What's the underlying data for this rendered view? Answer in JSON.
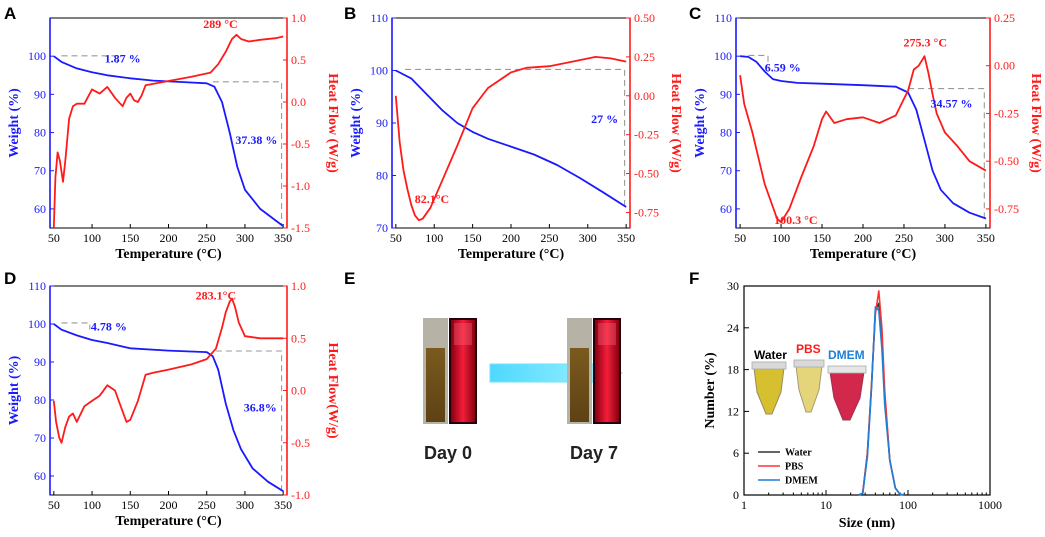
{
  "panels": {
    "A": "A",
    "B": "B",
    "C": "C",
    "D": "D",
    "E": "E",
    "F": "F"
  },
  "colors": {
    "weight": "#1a1aff",
    "heat": "#ff1a1a",
    "dash": "#9a9a9a",
    "water": "#333333",
    "pbs": "#ff3333",
    "dmem": "#1e7fd6",
    "arrow": "#7fe9ff"
  },
  "panel_E": {
    "day0": "Day 0",
    "day7": "Day 7"
  },
  "panel_F_tubes": {
    "water": "Water",
    "pbs": "PBS",
    "dmem": "DMEM"
  },
  "chart_data": [
    {
      "id": "A",
      "type": "line",
      "xlabel": "Temperature (°C)",
      "ylabel": "Weight (%)",
      "y2label": "Heat Flow (W/g)",
      "xlim": [
        45,
        355
      ],
      "xticks": [
        50,
        100,
        150,
        200,
        250,
        300,
        350
      ],
      "ylim": [
        55,
        110
      ],
      "yticks": [
        60,
        70,
        80,
        90,
        100
      ],
      "y2lim": [
        -1.5,
        1.0
      ],
      "y2ticks": [
        "-1.5",
        "-1.0",
        "-0.5",
        "0.0",
        "0.5",
        "1.0"
      ],
      "annotations": [
        {
          "text": "1.87 %",
          "x": 140,
          "y": 98.3,
          "axis": "left",
          "color": "blue"
        },
        {
          "text": "37.38 %",
          "x": 315,
          "y": 77,
          "axis": "left",
          "color": "blue"
        },
        {
          "text": "289 °C",
          "x": 268,
          "y2": 0.88,
          "axis": "right",
          "color": "red"
        }
      ],
      "dashes": [
        [
          [
            60,
            100.1
          ],
          [
            133,
            100.1
          ],
          [
            133,
            98.2
          ]
        ],
        [
          [
            258,
            93.3
          ],
          [
            348,
            93.3
          ],
          [
            348,
            56
          ]
        ]
      ],
      "series": [
        {
          "name": "Weight",
          "axis": "left",
          "color": "blue",
          "x": [
            50,
            60,
            80,
            100,
            120,
            150,
            180,
            220,
            250,
            260,
            270,
            280,
            290,
            300,
            320,
            340,
            350
          ],
          "y": [
            100,
            98.5,
            96.8,
            95.8,
            95,
            94.2,
            93.6,
            93.2,
            92.9,
            92,
            88,
            80,
            71,
            65,
            60,
            57,
            55.5
          ]
        },
        {
          "name": "Heat Flow",
          "axis": "right",
          "color": "red",
          "x": [
            50,
            52,
            55,
            58,
            62,
            65,
            70,
            75,
            80,
            90,
            100,
            110,
            120,
            130,
            140,
            145,
            150,
            155,
            160,
            165,
            170,
            200,
            230,
            255,
            265,
            275,
            283,
            289,
            295,
            305,
            320,
            340,
            350
          ],
          "y": [
            -1.5,
            -0.9,
            -0.6,
            -0.7,
            -0.95,
            -0.7,
            -0.2,
            -0.05,
            -0.02,
            -0.02,
            0.15,
            0.1,
            0.18,
            0.05,
            -0.05,
            0.05,
            0.1,
            0.02,
            0.0,
            0.08,
            0.2,
            0.25,
            0.3,
            0.35,
            0.45,
            0.6,
            0.75,
            0.8,
            0.75,
            0.72,
            0.74,
            0.76,
            0.78
          ]
        }
      ]
    },
    {
      "id": "B",
      "type": "line",
      "xlabel": "Temperature (°C)",
      "ylabel": "Weight (%)",
      "y2label": "Heat Flow (W/g)",
      "xlim": [
        45,
        355
      ],
      "xticks": [
        50,
        100,
        150,
        200,
        250,
        300,
        350
      ],
      "ylim": [
        70,
        110
      ],
      "yticks": [
        70,
        80,
        90,
        100,
        110
      ],
      "y2lim": [
        -0.85,
        0.5
      ],
      "y2ticks": [
        "-0.75",
        "-0.50",
        "-0.25",
        "0.00",
        "0.25",
        "0.50"
      ],
      "annotations": [
        {
          "text": "27 %",
          "x": 322,
          "y": 90,
          "axis": "left",
          "color": "blue"
        },
        {
          "text": "82.1°C",
          "x": 97,
          "y2": -0.69,
          "axis": "right",
          "color": "red"
        }
      ],
      "dashes": [
        [
          [
            62,
            100.2
          ],
          [
            348,
            100.2
          ],
          [
            348,
            73.5
          ]
        ]
      ],
      "series": [
        {
          "name": "Weight",
          "axis": "left",
          "color": "blue",
          "x": [
            50,
            70,
            90,
            110,
            130,
            150,
            170,
            200,
            230,
            260,
            290,
            320,
            350
          ],
          "y": [
            100,
            98.5,
            95.5,
            92.5,
            90,
            88.3,
            87,
            85.5,
            84,
            82,
            79.5,
            76.8,
            74
          ]
        },
        {
          "name": "Heat Flow",
          "axis": "right",
          "color": "red",
          "x": [
            50,
            55,
            60,
            65,
            70,
            75,
            80,
            85,
            95,
            110,
            130,
            150,
            170,
            200,
            220,
            250,
            280,
            310,
            330,
            350
          ],
          "y": [
            0.0,
            -0.3,
            -0.48,
            -0.6,
            -0.7,
            -0.77,
            -0.8,
            -0.79,
            -0.72,
            -0.55,
            -0.32,
            -0.08,
            0.05,
            0.15,
            0.18,
            0.19,
            0.22,
            0.25,
            0.24,
            0.22
          ]
        }
      ]
    },
    {
      "id": "C",
      "type": "line",
      "xlabel": "Temperature (°C)",
      "ylabel": "Weight (%)",
      "y2label": "Heat Flow (W/g)",
      "xlim": [
        45,
        355
      ],
      "xticks": [
        50,
        100,
        150,
        200,
        250,
        300,
        350
      ],
      "ylim": [
        55,
        110
      ],
      "yticks": [
        60,
        70,
        80,
        90,
        100,
        110
      ],
      "y2lim": [
        -0.85,
        0.25
      ],
      "y2ticks": [
        "-0.75",
        "-0.50",
        "-0.25",
        "0.00",
        "0.25"
      ],
      "annotations": [
        {
          "text": "6.59 %",
          "x": 102,
          "y": 96,
          "axis": "left",
          "color": "blue"
        },
        {
          "text": "34.57 %",
          "x": 308,
          "y": 86.5,
          "axis": "left",
          "color": "blue"
        },
        {
          "text": "275.3 °C",
          "x": 276,
          "y2": 0.1,
          "axis": "right",
          "color": "red"
        },
        {
          "text": "100.3 °C",
          "x": 118,
          "y2": -0.83,
          "axis": "right",
          "color": "red",
          "small": true
        }
      ],
      "dashes": [
        [
          [
            60,
            100.2
          ],
          [
            84,
            100.2
          ],
          [
            84,
            97
          ]
        ],
        [
          [
            255,
            91.5
          ],
          [
            348,
            91.5
          ],
          [
            348,
            57.5
          ]
        ]
      ],
      "series": [
        {
          "name": "Weight",
          "axis": "left",
          "color": "blue",
          "x": [
            50,
            60,
            70,
            80,
            90,
            100,
            120,
            150,
            200,
            240,
            255,
            265,
            275,
            285,
            295,
            310,
            330,
            350
          ],
          "y": [
            100,
            99.8,
            98.5,
            96,
            94,
            93.5,
            93,
            92.8,
            92.4,
            92,
            90.5,
            86,
            78,
            70,
            65,
            61.5,
            59,
            57.5
          ]
        },
        {
          "name": "Heat Flow",
          "axis": "right",
          "color": "red",
          "x": [
            50,
            55,
            65,
            80,
            95,
            100,
            110,
            125,
            140,
            150,
            155,
            165,
            180,
            200,
            220,
            240,
            255,
            262,
            268,
            275,
            280,
            285,
            290,
            300,
            315,
            330,
            350
          ],
          "y": [
            -0.05,
            -0.2,
            -0.35,
            -0.62,
            -0.8,
            -0.82,
            -0.75,
            -0.58,
            -0.42,
            -0.28,
            -0.24,
            -0.3,
            -0.28,
            -0.27,
            -0.3,
            -0.26,
            -0.13,
            -0.02,
            0.0,
            0.05,
            -0.04,
            -0.15,
            -0.25,
            -0.35,
            -0.42,
            -0.5,
            -0.55
          ]
        }
      ]
    },
    {
      "id": "D",
      "type": "line",
      "xlabel": "Temperature (°C)",
      "ylabel": "Weight (%)",
      "y2label": "Heat Flow(W/g)",
      "xlim": [
        45,
        355
      ],
      "xticks": [
        50,
        100,
        150,
        200,
        250,
        300,
        350
      ],
      "ylim": [
        55,
        110
      ],
      "yticks": [
        60,
        70,
        80,
        90,
        100,
        110
      ],
      "y2lim": [
        -1.0,
        1.0
      ],
      "y2ticks": [
        "-1.0",
        "-0.5",
        "0.0",
        "0.5",
        "1.0"
      ],
      "annotations": [
        {
          "text": "4.78 %",
          "x": 122,
          "y": 98.3,
          "axis": "left",
          "color": "blue"
        },
        {
          "text": "36.8%",
          "x": 320,
          "y": 77,
          "axis": "left",
          "color": "blue"
        },
        {
          "text": "283.1°C",
          "x": 262,
          "y2": 0.87,
          "axis": "right",
          "color": "red"
        }
      ],
      "dashes": [
        [
          [
            60,
            100.3
          ],
          [
            97,
            100.3
          ],
          [
            97,
            98.5
          ]
        ],
        [
          [
            262,
            92.9
          ],
          [
            348,
            92.9
          ],
          [
            348,
            56.5
          ]
        ]
      ],
      "series": [
        {
          "name": "Weight",
          "axis": "left",
          "color": "blue",
          "x": [
            50,
            60,
            80,
            100,
            120,
            150,
            200,
            250,
            258,
            265,
            275,
            285,
            295,
            310,
            330,
            350
          ],
          "y": [
            100,
            98.5,
            97,
            95.8,
            95,
            93.6,
            93,
            92.6,
            91.5,
            88,
            79,
            72,
            67,
            62,
            58.5,
            56
          ]
        },
        {
          "name": "Heat Flow",
          "axis": "right",
          "color": "red",
          "x": [
            50,
            53,
            57,
            60,
            65,
            70,
            75,
            80,
            90,
            100,
            110,
            120,
            130,
            140,
            145,
            150,
            160,
            170,
            180,
            200,
            230,
            250,
            262,
            270,
            275,
            280,
            283,
            287,
            292,
            300,
            320,
            340,
            350
          ],
          "y": [
            -0.1,
            -0.3,
            -0.45,
            -0.5,
            -0.35,
            -0.25,
            -0.22,
            -0.3,
            -0.15,
            -0.1,
            -0.05,
            0.05,
            0.0,
            -0.2,
            -0.3,
            -0.28,
            -0.1,
            0.15,
            0.17,
            0.2,
            0.25,
            0.3,
            0.4,
            0.6,
            0.75,
            0.85,
            0.88,
            0.8,
            0.65,
            0.52,
            0.5,
            0.5,
            0.5
          ]
        }
      ]
    },
    {
      "id": "F",
      "type": "line",
      "xscale": "log",
      "xlabel": "Size (nm)",
      "ylabel": "Number (%)",
      "xlim": [
        1,
        1000
      ],
      "xticks": [
        "1",
        "10",
        "100",
        "1000"
      ],
      "ylim": [
        0,
        30
      ],
      "yticks": [
        0,
        6,
        12,
        18,
        24,
        30
      ],
      "legend": [
        "Water",
        "PBS",
        "DMEM"
      ],
      "series": [
        {
          "name": "Water",
          "color": "water",
          "x": [
            25,
            28,
            32,
            36,
            40,
            44,
            48,
            52,
            60,
            70,
            80,
            90
          ],
          "y": [
            0,
            0.2,
            6,
            16,
            26.5,
            27.5,
            22,
            14,
            5,
            1,
            0.1,
            0
          ]
        },
        {
          "name": "PBS",
          "color": "pbs",
          "x": [
            25,
            28,
            32,
            36,
            40,
            44,
            48,
            52,
            60,
            70,
            80,
            90
          ],
          "y": [
            0,
            0.3,
            6,
            16,
            26,
            29.3,
            24,
            15,
            5,
            1,
            0.1,
            0
          ]
        },
        {
          "name": "DMEM",
          "color": "dmem",
          "x": [
            25,
            28,
            32,
            36,
            40,
            44,
            48,
            52,
            60,
            70,
            80,
            90
          ],
          "y": [
            0,
            0.2,
            5.5,
            15.5,
            27,
            26.5,
            21,
            13,
            5,
            1,
            0.1,
            0
          ]
        }
      ]
    }
  ]
}
